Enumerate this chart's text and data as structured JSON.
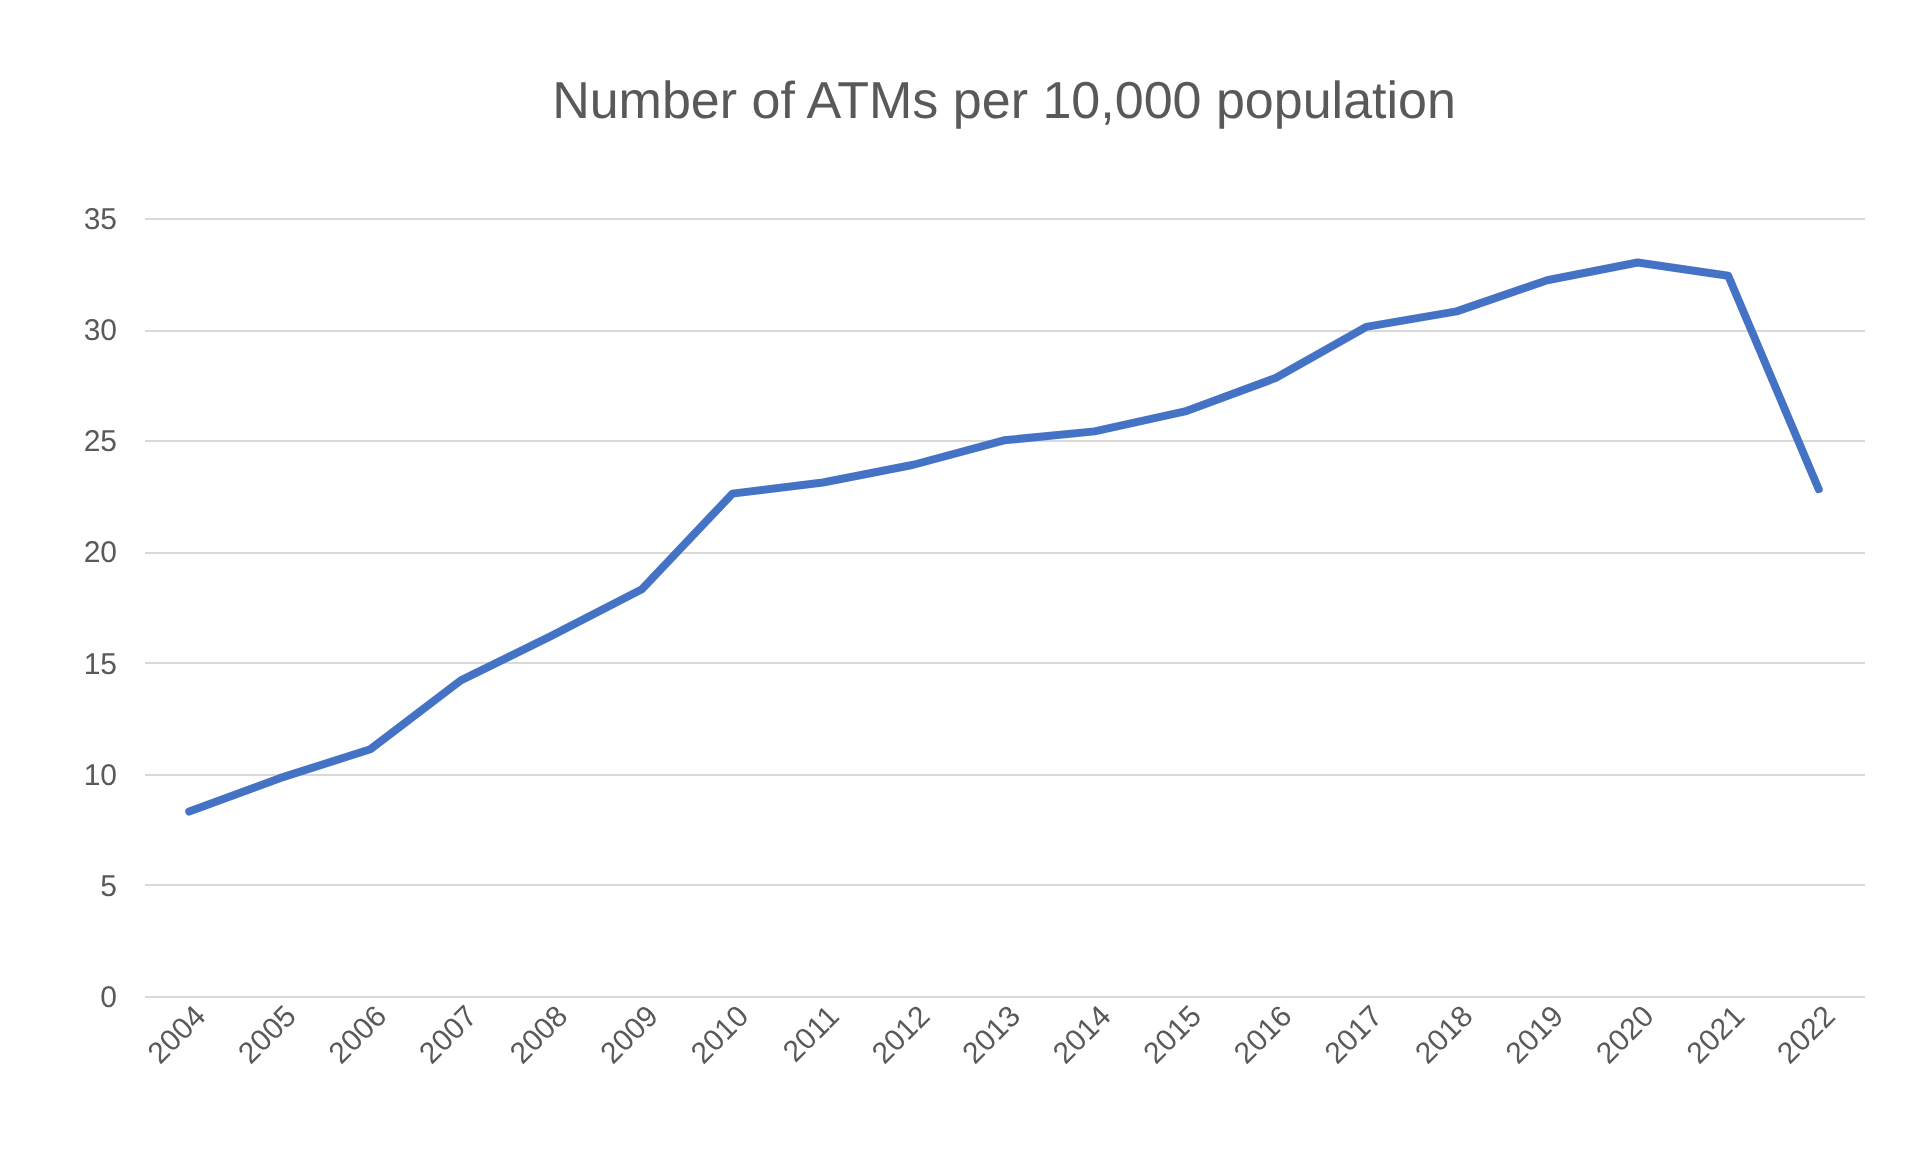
{
  "chart_data": {
    "type": "line",
    "title": "Number of ATMs per 10,000 population",
    "categories": [
      "2004",
      "2005",
      "2006",
      "2007",
      "2008",
      "2009",
      "2010",
      "2011",
      "2012",
      "2013",
      "2014",
      "2015",
      "2016",
      "2017",
      "2018",
      "2019",
      "2020",
      "2021",
      "2022"
    ],
    "series": [
      {
        "color": "#4472c4",
        "values": [
          8.3,
          9.8,
          11.1,
          14.2,
          16.2,
          18.3,
          22.6,
          23.1,
          23.9,
          25.0,
          25.4,
          26.3,
          27.8,
          30.1,
          30.8,
          32.2,
          33.0,
          32.4,
          22.8
        ]
      }
    ],
    "ylim": [
      0,
      35
    ],
    "yticks": [
      0,
      5,
      10,
      15,
      20,
      25,
      30,
      35
    ],
    "grid": "y",
    "marker": "none",
    "line_style": "solid"
  }
}
